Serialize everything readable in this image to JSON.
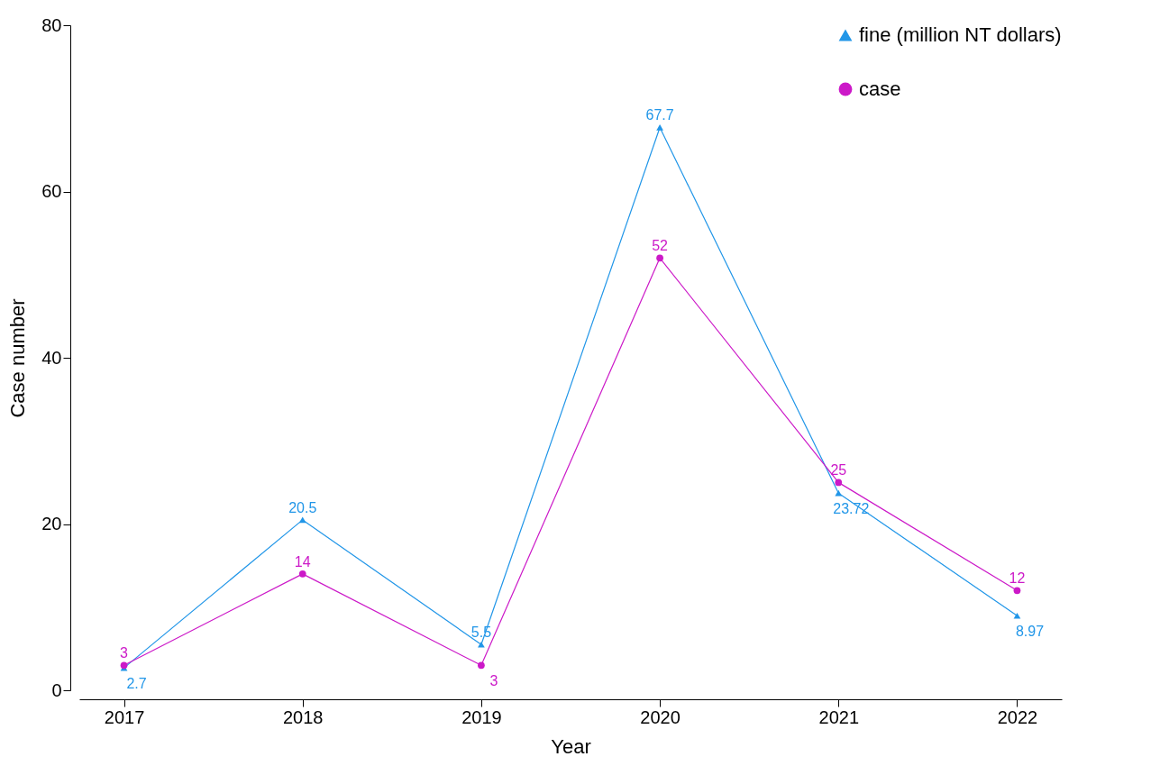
{
  "chart_data": {
    "type": "line",
    "xlabel": "Year",
    "ylabel": "Case number",
    "categories": [
      "2017",
      "2018",
      "2019",
      "2020",
      "2021",
      "2022"
    ],
    "series": [
      {
        "name": "fine (million NT dollars)",
        "color": "#2196e8",
        "marker": "triangle",
        "values": [
          2.7,
          20.5,
          5.5,
          67.7,
          23.72,
          8.97
        ]
      },
      {
        "name": "case",
        "color": "#cc19c8",
        "marker": "circle",
        "values": [
          3,
          14,
          3,
          52,
          25,
          12
        ]
      }
    ],
    "ylim": [
      0,
      80
    ],
    "yticks": [
      0,
      20,
      40,
      60,
      80
    ],
    "grid": false,
    "legend": "top right",
    "data_labels": true,
    "line_style": "solid"
  }
}
